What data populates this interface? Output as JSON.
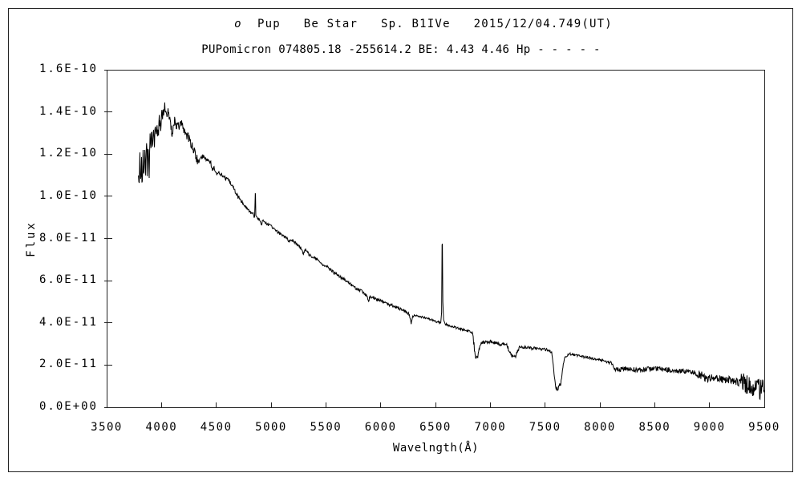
{
  "page": {
    "background": "#ffffff",
    "frame_color": "#222222"
  },
  "header": {
    "title_line1_prefix": "o",
    "title_line1_rest": "  Pup   Be Star   Sp. B1IVe   2015/12/04.749(UT)",
    "title_line2": "PUPomicron 074805.18 -255614.2 BE: 4.43 4.46 Hp - - - - -"
  },
  "chart_data": {
    "type": "line",
    "title": "o Pup  Be Star  Sp. B1IVe  2015/12/04.749(UT)",
    "subtitle": "PUPomicron 074805.18 -255614.2 BE: 4.43 4.46 Hp - - - - -",
    "xlabel": "Wavelngth(Å)",
    "ylabel": "Flux",
    "xlim": [
      3500,
      9500
    ],
    "ylim": [
      0,
      1.6e-10
    ],
    "grid": false,
    "legend": null,
    "line_color": "#000000",
    "x_ticks": [
      {
        "value": 3500,
        "label": "3500"
      },
      {
        "value": 4000,
        "label": "4000"
      },
      {
        "value": 4500,
        "label": "4500"
      },
      {
        "value": 5000,
        "label": "5000"
      },
      {
        "value": 5500,
        "label": "5500"
      },
      {
        "value": 6000,
        "label": "6000"
      },
      {
        "value": 6500,
        "label": "6500"
      },
      {
        "value": 7000,
        "label": "7000"
      },
      {
        "value": 7500,
        "label": "7500"
      },
      {
        "value": 8000,
        "label": "8000"
      },
      {
        "value": 8500,
        "label": "8500"
      },
      {
        "value": 9000,
        "label": "9000"
      },
      {
        "value": 9500,
        "label": "9500"
      }
    ],
    "y_ticks": [
      {
        "flux_1e11": 0,
        "label": "0.0E+00"
      },
      {
        "flux_1e11": 2,
        "label": "2.0E-11"
      },
      {
        "flux_1e11": 4,
        "label": "4.0E-11"
      },
      {
        "flux_1e11": 6,
        "label": "6.0E-11"
      },
      {
        "flux_1e11": 8,
        "label": "8.0E-11"
      },
      {
        "flux_1e11": 10,
        "label": "1.0E-10"
      },
      {
        "flux_1e11": 12,
        "label": "1.2E-10"
      },
      {
        "flux_1e11": 14,
        "label": "1.4E-10"
      },
      {
        "flux_1e11": 16,
        "label": "1.6E-10"
      }
    ],
    "series": [
      {
        "name": "spectrum",
        "flux_scale": 1e-11,
        "wavelength_range": [
          3790,
          9500
        ],
        "noise_seed": 77,
        "anchors": [
          [
            3790,
            11.2
          ],
          [
            3797,
            10.6
          ],
          [
            3803,
            11.9
          ],
          [
            3810,
            10.8
          ],
          [
            3818,
            11.7
          ],
          [
            3825,
            10.5
          ],
          [
            3832,
            11.9
          ],
          [
            3840,
            11.0
          ],
          [
            3848,
            12.2
          ],
          [
            3856,
            11.1
          ],
          [
            3864,
            12.3
          ],
          [
            3872,
            11.4
          ],
          [
            3880,
            12.6
          ],
          [
            3888,
            11.2
          ],
          [
            3896,
            12.7
          ],
          [
            3904,
            12.2
          ],
          [
            3912,
            13.0
          ],
          [
            3920,
            12.4
          ],
          [
            3928,
            13.1
          ],
          [
            3936,
            12.6
          ],
          [
            3944,
            13.2
          ],
          [
            3952,
            12.8
          ],
          [
            3960,
            13.3
          ],
          [
            3970,
            12.9
          ],
          [
            3980,
            13.5
          ],
          [
            3990,
            13.3
          ],
          [
            4000,
            13.7
          ],
          [
            4010,
            13.8
          ],
          [
            4020,
            14.0
          ],
          [
            4030,
            14.25
          ],
          [
            4040,
            13.9
          ],
          [
            4050,
            13.75
          ],
          [
            4060,
            14.0
          ],
          [
            4070,
            13.8
          ],
          [
            4080,
            13.6
          ],
          [
            4090,
            13.2
          ],
          [
            4100,
            12.9
          ],
          [
            4110,
            13.3
          ],
          [
            4120,
            13.55
          ],
          [
            4135,
            13.2
          ],
          [
            4150,
            13.5
          ],
          [
            4165,
            13.3
          ],
          [
            4180,
            13.45
          ],
          [
            4200,
            13.2
          ],
          [
            4220,
            13.0
          ],
          [
            4240,
            12.85
          ],
          [
            4260,
            12.6
          ],
          [
            4280,
            12.4
          ],
          [
            4300,
            12.1
          ],
          [
            4320,
            11.8
          ],
          [
            4340,
            11.6
          ],
          [
            4360,
            11.85
          ],
          [
            4380,
            11.9
          ],
          [
            4400,
            11.8
          ],
          [
            4430,
            11.7
          ],
          [
            4450,
            11.6
          ],
          [
            4465,
            11.2
          ],
          [
            4480,
            11.35
          ],
          [
            4505,
            11.0
          ],
          [
            4520,
            11.2
          ],
          [
            4540,
            11.05
          ],
          [
            4565,
            10.95
          ],
          [
            4590,
            10.8
          ],
          [
            4615,
            10.75
          ],
          [
            4640,
            10.55
          ],
          [
            4665,
            10.3
          ],
          [
            4690,
            10.05
          ],
          [
            4715,
            9.85
          ],
          [
            4740,
            9.7
          ],
          [
            4770,
            9.5
          ],
          [
            4800,
            9.3
          ],
          [
            4830,
            9.15
          ],
          [
            4850,
            9.05
          ],
          [
            4856,
            10.15
          ],
          [
            4858,
            10.05
          ],
          [
            4861,
            9.1
          ],
          [
            4868,
            9.0
          ],
          [
            4880,
            8.95
          ],
          [
            4895,
            8.9
          ],
          [
            4910,
            8.65
          ],
          [
            4920,
            8.8
          ],
          [
            4935,
            8.85
          ],
          [
            4955,
            8.7
          ],
          [
            4975,
            8.65
          ],
          [
            5000,
            8.6
          ],
          [
            5030,
            8.45
          ],
          [
            5060,
            8.3
          ],
          [
            5090,
            8.2
          ],
          [
            5120,
            8.1
          ],
          [
            5150,
            8.0
          ],
          [
            5168,
            7.8
          ],
          [
            5182,
            7.95
          ],
          [
            5210,
            7.85
          ],
          [
            5240,
            7.7
          ],
          [
            5270,
            7.55
          ],
          [
            5295,
            7.3
          ],
          [
            5315,
            7.45
          ],
          [
            5345,
            7.25
          ],
          [
            5375,
            7.15
          ],
          [
            5405,
            7.05
          ],
          [
            5440,
            6.9
          ],
          [
            5475,
            6.75
          ],
          [
            5510,
            6.65
          ],
          [
            5545,
            6.5
          ],
          [
            5580,
            6.35
          ],
          [
            5615,
            6.25
          ],
          [
            5650,
            6.1
          ],
          [
            5685,
            6.0
          ],
          [
            5720,
            5.85
          ],
          [
            5755,
            5.7
          ],
          [
            5790,
            5.6
          ],
          [
            5825,
            5.5
          ],
          [
            5858,
            5.35
          ],
          [
            5878,
            5.25
          ],
          [
            5890,
            5.05
          ],
          [
            5902,
            5.25
          ],
          [
            5930,
            5.2
          ],
          [
            5960,
            5.1
          ],
          [
            6000,
            5.05
          ],
          [
            6040,
            4.95
          ],
          [
            6080,
            4.85
          ],
          [
            6120,
            4.8
          ],
          [
            6160,
            4.7
          ],
          [
            6200,
            4.6
          ],
          [
            6235,
            4.5
          ],
          [
            6262,
            4.4
          ],
          [
            6278,
            3.95
          ],
          [
            6292,
            4.3
          ],
          [
            6310,
            4.35
          ],
          [
            6350,
            4.3
          ],
          [
            6395,
            4.25
          ],
          [
            6440,
            4.2
          ],
          [
            6485,
            4.1
          ],
          [
            6520,
            4.05
          ],
          [
            6548,
            4.0
          ],
          [
            6556,
            4.5
          ],
          [
            6560,
            7.7
          ],
          [
            6563,
            7.75
          ],
          [
            6567,
            5.0
          ],
          [
            6574,
            4.15
          ],
          [
            6588,
            3.95
          ],
          [
            6610,
            3.9
          ],
          [
            6640,
            3.85
          ],
          [
            6670,
            3.8
          ],
          [
            6700,
            3.75
          ],
          [
            6735,
            3.7
          ],
          [
            6770,
            3.65
          ],
          [
            6805,
            3.6
          ],
          [
            6840,
            3.5
          ],
          [
            6852,
            2.9
          ],
          [
            6862,
            2.35
          ],
          [
            6872,
            2.25
          ],
          [
            6882,
            2.4
          ],
          [
            6894,
            2.55
          ],
          [
            6908,
            2.95
          ],
          [
            6925,
            3.05
          ],
          [
            6950,
            3.1
          ],
          [
            6980,
            3.1
          ],
          [
            7010,
            3.1
          ],
          [
            7045,
            3.05
          ],
          [
            7080,
            3.0
          ],
          [
            7115,
            3.0
          ],
          [
            7150,
            2.95
          ],
          [
            7170,
            2.7
          ],
          [
            7192,
            2.45
          ],
          [
            7215,
            2.35
          ],
          [
            7240,
            2.5
          ],
          [
            7262,
            2.8
          ],
          [
            7290,
            2.85
          ],
          [
            7330,
            2.85
          ],
          [
            7370,
            2.8
          ],
          [
            7410,
            2.8
          ],
          [
            7450,
            2.75
          ],
          [
            7490,
            2.75
          ],
          [
            7530,
            2.7
          ],
          [
            7560,
            2.6
          ],
          [
            7578,
            1.9
          ],
          [
            7592,
            1.1
          ],
          [
            7605,
            0.9
          ],
          [
            7615,
            0.8
          ],
          [
            7628,
            1.0
          ],
          [
            7642,
            1.1
          ],
          [
            7655,
            1.65
          ],
          [
            7670,
            2.15
          ],
          [
            7685,
            2.4
          ],
          [
            7700,
            2.45
          ],
          [
            7725,
            2.52
          ],
          [
            7755,
            2.5
          ],
          [
            7790,
            2.45
          ],
          [
            7830,
            2.4
          ],
          [
            7870,
            2.38
          ],
          [
            7910,
            2.33
          ],
          [
            7950,
            2.3
          ],
          [
            7990,
            2.28
          ],
          [
            8030,
            2.22
          ],
          [
            8070,
            2.15
          ],
          [
            8100,
            2.08
          ],
          [
            8125,
            1.9
          ],
          [
            8150,
            1.8
          ],
          [
            8180,
            1.78
          ],
          [
            8220,
            1.82
          ],
          [
            8265,
            1.85
          ],
          [
            8310,
            1.8
          ],
          [
            8355,
            1.78
          ],
          [
            8400,
            1.8
          ],
          [
            8445,
            1.83
          ],
          [
            8490,
            1.85
          ],
          [
            8535,
            1.82
          ],
          [
            8580,
            1.8
          ],
          [
            8625,
            1.78
          ],
          [
            8670,
            1.75
          ],
          [
            8715,
            1.73
          ],
          [
            8760,
            1.72
          ],
          [
            8805,
            1.7
          ],
          [
            8850,
            1.65
          ],
          [
            8890,
            1.58
          ],
          [
            8925,
            1.5
          ],
          [
            8960,
            1.4
          ],
          [
            8995,
            1.35
          ],
          [
            9030,
            1.38
          ],
          [
            9070,
            1.35
          ],
          [
            9110,
            1.32
          ],
          [
            9150,
            1.3
          ],
          [
            9190,
            1.28
          ],
          [
            9230,
            1.25
          ],
          [
            9270,
            1.18
          ],
          [
            9310,
            1.1
          ],
          [
            9350,
            1.0
          ],
          [
            9390,
            0.93
          ],
          [
            9430,
            0.88
          ],
          [
            9465,
            0.83
          ],
          [
            9500,
            0.8
          ]
        ],
        "noise_regions": [
          [
            3790,
            3910,
            0.45
          ],
          [
            3910,
            4010,
            0.4
          ],
          [
            4010,
            4330,
            0.22
          ],
          [
            4330,
            4850,
            0.1
          ],
          [
            4868,
            6270,
            0.07
          ],
          [
            6270,
            6545,
            0.05
          ],
          [
            6590,
            6840,
            0.05
          ],
          [
            6840,
            6905,
            0.15
          ],
          [
            6905,
            7160,
            0.08
          ],
          [
            7160,
            7270,
            0.1
          ],
          [
            7270,
            7575,
            0.07
          ],
          [
            7575,
            7660,
            0.12
          ],
          [
            7660,
            8100,
            0.06
          ],
          [
            8100,
            8890,
            0.12
          ],
          [
            8890,
            9290,
            0.2
          ],
          [
            9290,
            9500,
            0.5
          ]
        ]
      }
    ]
  }
}
